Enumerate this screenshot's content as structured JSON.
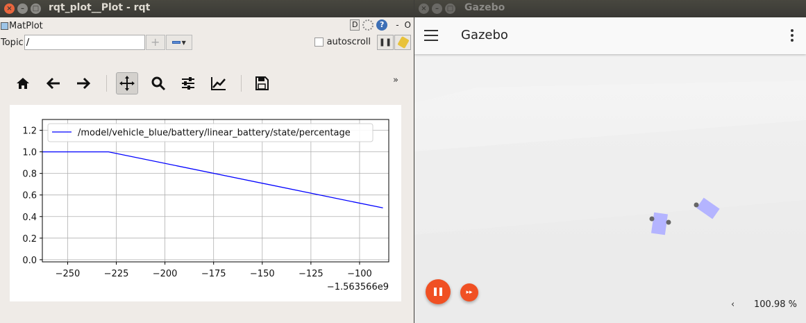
{
  "rqt": {
    "window_title": "rqt_plot__Plot - rqt",
    "plugin_title": "MatPlot",
    "header_buttons": {
      "d": "D",
      "help": "?",
      "minimize": "-",
      "close": "O"
    },
    "topic_label": "Topic",
    "topic_value": "/",
    "add_label": "+",
    "autoscroll_label": "autoscroll",
    "pause_label": "❚❚",
    "toolbar": [
      "home",
      "back",
      "forward",
      "pan",
      "zoom",
      "configure",
      "edit-axis",
      "save"
    ],
    "toolbar_more": "»"
  },
  "chart_data": {
    "type": "line",
    "title": "",
    "xlabel": "",
    "ylabel": "",
    "x_offset_label": "−1.563566e9",
    "xlim": [
      -263,
      -85
    ],
    "ylim": [
      -0.02,
      1.3
    ],
    "xticks": [
      -250,
      -225,
      -200,
      -175,
      -150,
      -125,
      -100
    ],
    "xtick_labels": [
      "−250",
      "−225",
      "−200",
      "−175",
      "−150",
      "−125",
      "−100"
    ],
    "yticks": [
      0.0,
      0.2,
      0.4,
      0.6,
      0.8,
      1.0,
      1.2
    ],
    "ytick_labels": [
      "0.0",
      "0.2",
      "0.4",
      "0.6",
      "0.8",
      "1.0",
      "1.2"
    ],
    "grid": true,
    "legend_position": "top",
    "series": [
      {
        "name": "/model/vehicle_blue/battery/linear_battery/state/percentage",
        "color": "#0000ff",
        "x": [
          -263,
          -229,
          -88
        ],
        "y": [
          1.0,
          1.0,
          0.48
        ]
      }
    ]
  },
  "gazebo": {
    "window_title": "Gazebo",
    "app_title": "Gazebo",
    "rtf_chevron": "‹",
    "rtf_value": "100.98 %",
    "ff_label": "▸▸",
    "colors": {
      "accent": "#f05023",
      "vehicle": "#b0b0ff",
      "wheel": "#666666"
    }
  }
}
